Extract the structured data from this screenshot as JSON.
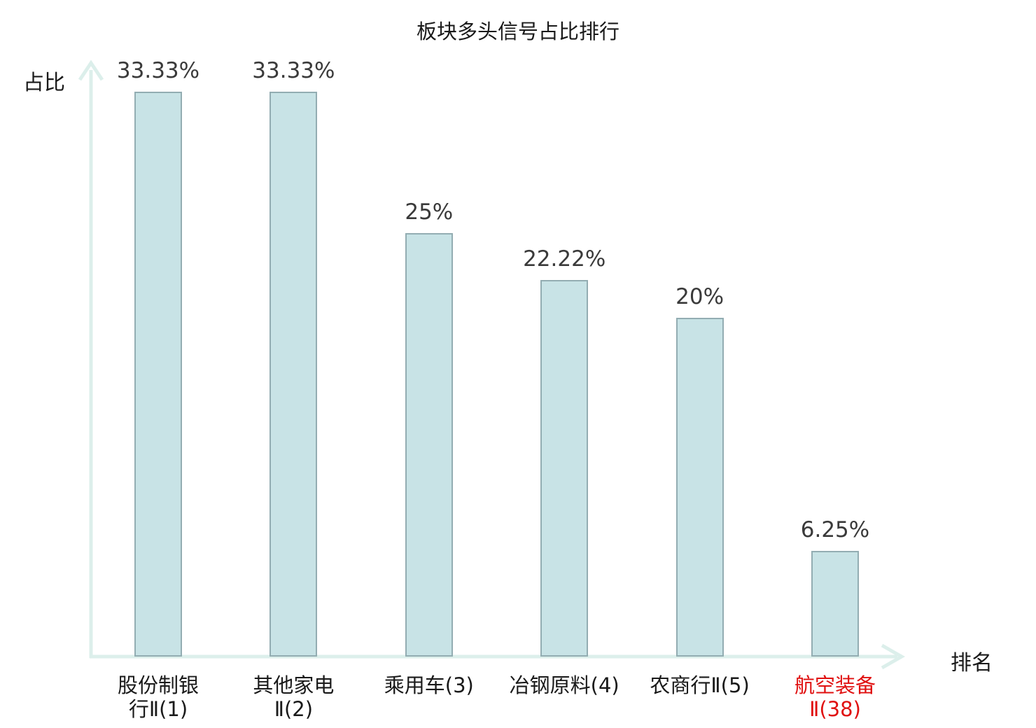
{
  "chart_data": {
    "type": "bar",
    "title": "板块多头信号占比排行",
    "xlabel": "排名",
    "ylabel": "占比",
    "categories": [
      "股份制银行Ⅱ(1)",
      "其他家电Ⅱ(2)",
      "乘用车(3)",
      "冶钢原料(4)",
      "农商行Ⅱ(5)",
      "航空装备Ⅱ(38)"
    ],
    "category_lines": [
      [
        "股份制银",
        "行Ⅱ(1)"
      ],
      [
        "其他家电",
        "Ⅱ(2)"
      ],
      [
        "乘用车(3)"
      ],
      [
        "冶钢原料(4)"
      ],
      [
        "农商行Ⅱ(5)"
      ],
      [
        "航空装备",
        "Ⅱ(38)"
      ]
    ],
    "values": [
      33.33,
      33.33,
      25,
      22.22,
      20,
      6.25
    ],
    "value_labels": [
      "33.33%",
      "33.33%",
      "25%",
      "22.22%",
      "20%",
      "6.25%"
    ],
    "highlight_index": 5,
    "ylim": [
      0,
      35
    ],
    "grid": "off",
    "legend": "none",
    "colors": {
      "bar_fill": "#c8e3e6",
      "bar_border": "#93adb2",
      "axis": "#dcefeb",
      "value_text": "#3a3a3a",
      "category_text": "#1a1a1a",
      "highlight": "#e01010"
    }
  }
}
